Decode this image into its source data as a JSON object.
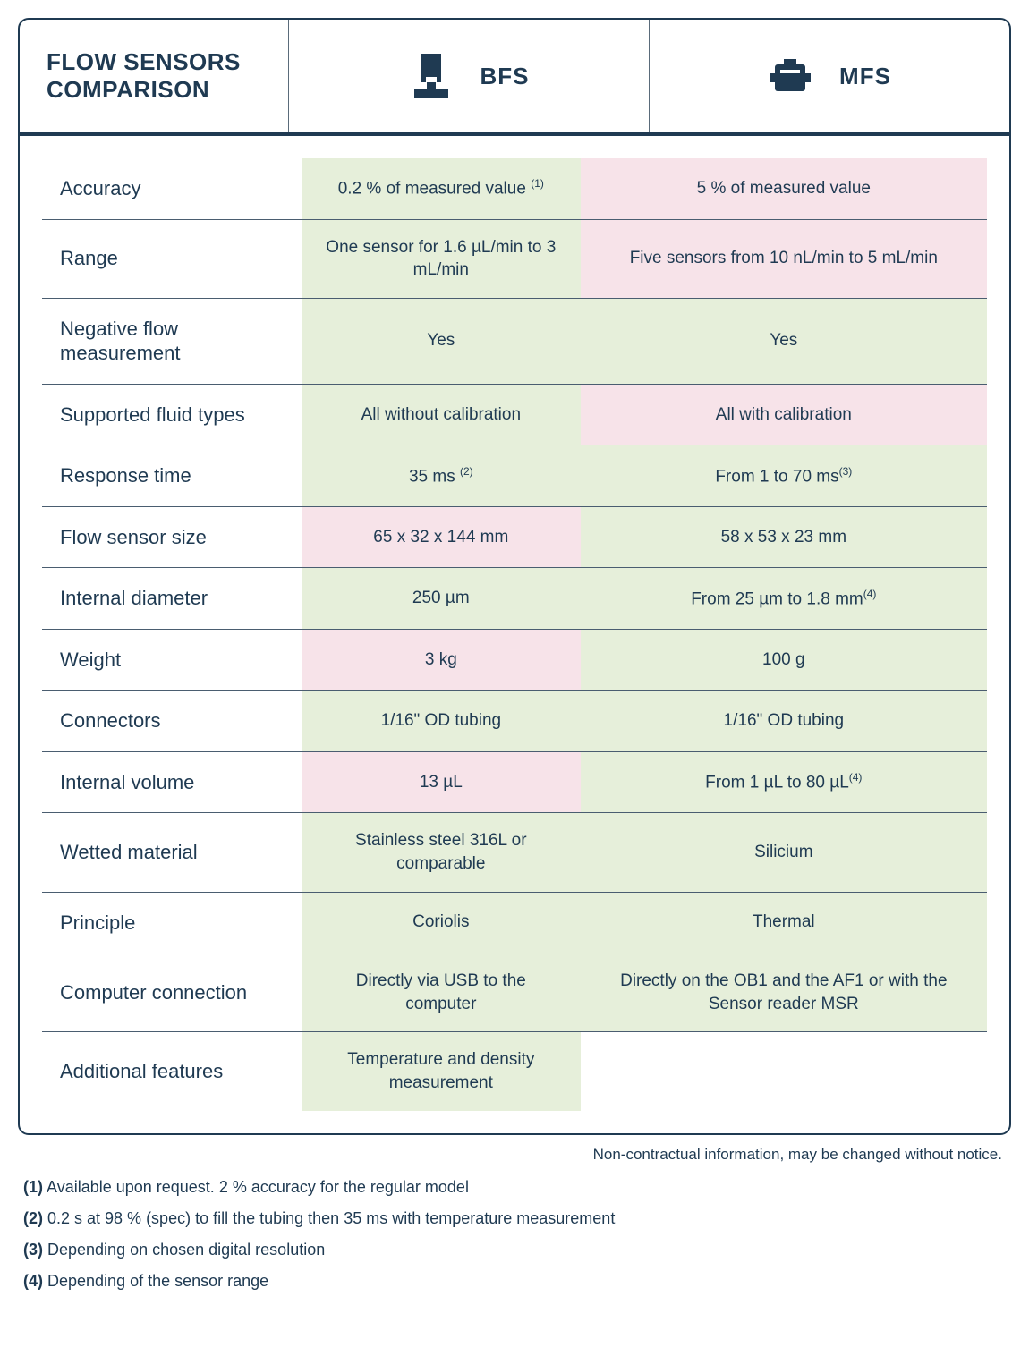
{
  "colors": {
    "primary": "#1f3a52",
    "cell_green": "#e6efda",
    "cell_pink": "#f7e3e9",
    "background": "#ffffff"
  },
  "header": {
    "title_line1": "FLOW SENSORS",
    "title_line2": "COMPARISON",
    "col1": {
      "label": "BFS",
      "icon": "bfs-sensor-icon"
    },
    "col2": {
      "label": "MFS",
      "icon": "mfs-sensor-icon"
    }
  },
  "rows": [
    {
      "label": "Accuracy",
      "bfs": "0.2 % of measured value",
      "bfs_sup": "(1)",
      "bfs_color": "green",
      "mfs": "5 % of measured value",
      "mfs_color": "pink"
    },
    {
      "label": "Range",
      "bfs": "One sensor for 1.6  µL/min to 3 mL/min",
      "bfs_color": "green",
      "mfs": "Five sensors from 10 nL/min to 5 mL/min",
      "mfs_color": "pink"
    },
    {
      "label": "Negative flow measurement",
      "bfs": "Yes",
      "bfs_color": "green",
      "mfs": "Yes",
      "mfs_color": "green"
    },
    {
      "label": "Supported fluid types",
      "bfs": "All without calibration",
      "bfs_color": "green",
      "mfs": "All with calibration",
      "mfs_color": "pink"
    },
    {
      "label": "Response time",
      "bfs": "35 ms",
      "bfs_sup": "(2)",
      "bfs_color": "green",
      "mfs": "From 1 to 70 ms",
      "mfs_sup": "(3)",
      "mfs_color": "green"
    },
    {
      "label": "Flow sensor size",
      "bfs": "65 x 32 x 144 mm",
      "bfs_color": "pink",
      "mfs": "58 x 53 x 23 mm",
      "mfs_color": "green"
    },
    {
      "label": "Internal diameter",
      "bfs": "250  µm",
      "bfs_color": "green",
      "mfs": "From 25 µm to 1.8 mm",
      "mfs_sup": "(4)",
      "mfs_color": "green"
    },
    {
      "label": "Weight",
      "bfs": "3 kg",
      "bfs_color": "pink",
      "mfs": "100 g",
      "mfs_color": "green"
    },
    {
      "label": "Connectors",
      "bfs": "1/16\" OD tubing",
      "bfs_color": "green",
      "mfs": "1/16\" OD tubing",
      "mfs_color": "green"
    },
    {
      "label": "Internal volume",
      "bfs": "13 µL",
      "bfs_color": "pink",
      "mfs": "From 1 µL to 80 µL",
      "mfs_sup": "(4)",
      "mfs_color": "green"
    },
    {
      "label": "Wetted material",
      "bfs": "Stainless steel 316L or comparable",
      "bfs_color": "green",
      "mfs": "Silicium",
      "mfs_color": "green"
    },
    {
      "label": "Principle",
      "bfs": "Coriolis",
      "bfs_color": "green",
      "mfs": "Thermal",
      "mfs_color": "green"
    },
    {
      "label": "Computer connection",
      "bfs": "Directly via USB  to the computer",
      "bfs_color": "green",
      "mfs": "Directly on the OB1 and the AF1 or with the Sensor reader MSR",
      "mfs_color": "green"
    },
    {
      "label": "Additional features",
      "bfs": "Temperature and density measurement",
      "bfs_color": "green",
      "mfs": "",
      "mfs_color": "none"
    }
  ],
  "disclaimer": "Non-contractual information, may be changed without notice.",
  "footnotes": [
    {
      "num": "(1)",
      "text": "Available upon request. 2 % accuracy for the regular model"
    },
    {
      "num": "(2)",
      "text": "0.2 s at 98 % (spec) to fill the tubing then 35 ms with temperature measurement"
    },
    {
      "num": "(3)",
      "text": "Depending on chosen digital resolution"
    },
    {
      "num": "(4)",
      "text": "Depending of the sensor range"
    }
  ]
}
